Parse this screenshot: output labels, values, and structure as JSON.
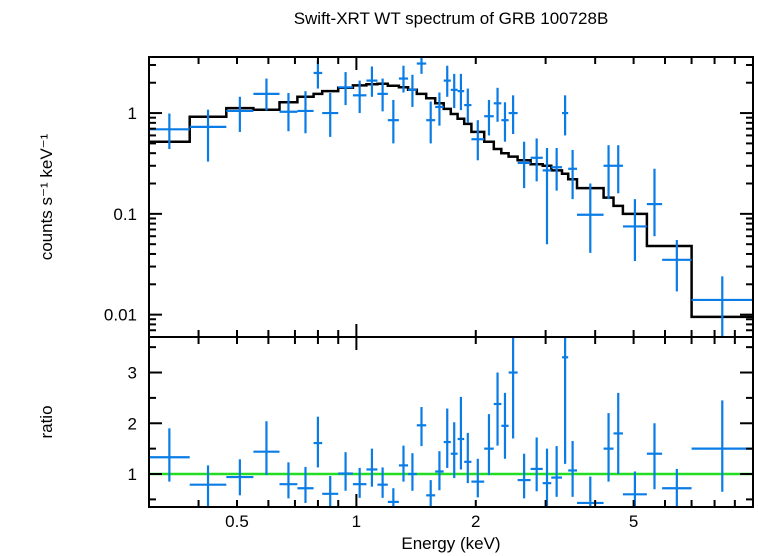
{
  "chart_data": [
    {
      "panel": "spectrum",
      "type": "scatter",
      "title": "Swift-XRT WT spectrum of GRB 100728B",
      "xlabel": "",
      "ylabel": "counts s⁻¹ keV⁻¹",
      "x_scale": "log",
      "y_scale": "log",
      "xlim": [
        0.3,
        10.0
      ],
      "ylim": [
        0.006,
        3.6
      ],
      "x_ticks": [
        0.5,
        1,
        2,
        5
      ],
      "y_ticks": [
        {
          "value": 1,
          "label": "1"
        },
        {
          "value": 0.1,
          "label": "0.1"
        },
        {
          "value": 0.01,
          "label": "0.01"
        }
      ],
      "colors": {
        "data": "#0a7ce6",
        "model": "#000000"
      },
      "series": [
        {
          "kind": "data_with_errors",
          "points": [
            {
              "x0": 0.3,
              "x1": 0.38,
              "y": 0.69,
              "ylo": 0.44,
              "yhi": 0.99
            },
            {
              "x0": 0.38,
              "x1": 0.47,
              "y": 0.73,
              "ylo": 0.33,
              "yhi": 1.08
            },
            {
              "x0": 0.47,
              "x1": 0.55,
              "y": 1.05,
              "ylo": 0.65,
              "yhi": 1.45
            },
            {
              "x0": 0.55,
              "x1": 0.64,
              "y": 1.55,
              "ylo": 1.06,
              "yhi": 2.2
            },
            {
              "x0": 0.64,
              "x1": 0.71,
              "y": 1.03,
              "ylo": 0.66,
              "yhi": 1.58
            },
            {
              "x0": 0.71,
              "x1": 0.78,
              "y": 1.05,
              "ylo": 0.63,
              "yhi": 1.65
            },
            {
              "x0": 0.78,
              "x1": 0.82,
              "y": 2.5,
              "ylo": 1.75,
              "yhi": 3.3
            },
            {
              "x0": 0.82,
              "x1": 0.9,
              "y": 1.0,
              "ylo": 0.58,
              "yhi": 1.58
            },
            {
              "x0": 0.9,
              "x1": 0.98,
              "y": 1.8,
              "ylo": 1.2,
              "yhi": 2.55
            },
            {
              "x0": 0.98,
              "x1": 1.06,
              "y": 1.5,
              "ylo": 1.0,
              "yhi": 2.1
            },
            {
              "x0": 1.06,
              "x1": 1.13,
              "y": 2.1,
              "ylo": 1.45,
              "yhi": 2.9
            },
            {
              "x0": 1.13,
              "x1": 1.2,
              "y": 1.55,
              "ylo": 1.04,
              "yhi": 2.2
            },
            {
              "x0": 1.2,
              "x1": 1.28,
              "y": 0.85,
              "ylo": 0.5,
              "yhi": 1.35
            },
            {
              "x0": 1.28,
              "x1": 1.35,
              "y": 2.2,
              "ylo": 1.6,
              "yhi": 2.95
            },
            {
              "x0": 1.35,
              "x1": 1.42,
              "y": 1.7,
              "ylo": 1.15,
              "yhi": 2.4
            },
            {
              "x0": 1.42,
              "x1": 1.5,
              "y": 3.1,
              "ylo": 2.45,
              "yhi": 3.6
            },
            {
              "x0": 1.5,
              "x1": 1.58,
              "y": 0.85,
              "ylo": 0.5,
              "yhi": 1.3
            },
            {
              "x0": 1.58,
              "x1": 1.66,
              "y": 1.15,
              "ylo": 0.75,
              "yhi": 1.6
            },
            {
              "x0": 1.66,
              "x1": 1.73,
              "y": 2.1,
              "ylo": 1.45,
              "yhi": 2.95
            },
            {
              "x0": 1.73,
              "x1": 1.8,
              "y": 1.7,
              "ylo": 1.12,
              "yhi": 2.45
            },
            {
              "x0": 1.8,
              "x1": 1.87,
              "y": 1.65,
              "ylo": 1.07,
              "yhi": 2.45
            },
            {
              "x0": 1.87,
              "x1": 1.95,
              "y": 1.2,
              "ylo": 0.8,
              "yhi": 1.75
            },
            {
              "x0": 1.95,
              "x1": 2.1,
              "y": 0.55,
              "ylo": 0.34,
              "yhi": 0.85
            },
            {
              "x0": 2.1,
              "x1": 2.22,
              "y": 0.93,
              "ylo": 0.6,
              "yhi": 1.35
            },
            {
              "x0": 2.22,
              "x1": 2.32,
              "y": 1.25,
              "ylo": 0.82,
              "yhi": 1.78
            },
            {
              "x0": 2.32,
              "x1": 2.42,
              "y": 0.85,
              "ylo": 0.52,
              "yhi": 1.28
            },
            {
              "x0": 2.42,
              "x1": 2.55,
              "y": 1.0,
              "ylo": 0.62,
              "yhi": 1.5
            },
            {
              "x0": 2.55,
              "x1": 2.75,
              "y": 0.32,
              "ylo": 0.18,
              "yhi": 0.52
            },
            {
              "x0": 2.75,
              "x1": 2.95,
              "y": 0.36,
              "ylo": 0.21,
              "yhi": 0.56
            },
            {
              "x0": 2.95,
              "x1": 3.1,
              "y": 0.27,
              "ylo": 0.05,
              "yhi": 0.45
            },
            {
              "x0": 3.1,
              "x1": 3.3,
              "y": 0.29,
              "ylo": 0.17,
              "yhi": 0.45
            },
            {
              "x0": 3.3,
              "x1": 3.42,
              "y": 1.0,
              "ylo": 0.6,
              "yhi": 1.5
            },
            {
              "x0": 3.42,
              "x1": 3.6,
              "y": 0.28,
              "ylo": 0.14,
              "yhi": 0.43
            },
            {
              "x0": 3.6,
              "x1": 4.2,
              "y": 0.098,
              "ylo": 0.041,
              "yhi": 0.2
            },
            {
              "x0": 4.2,
              "x1": 4.45,
              "y": 0.3,
              "ylo": 0.14,
              "yhi": 0.48
            },
            {
              "x0": 4.45,
              "x1": 4.7,
              "y": 0.3,
              "ylo": 0.16,
              "yhi": 0.48
            },
            {
              "x0": 4.7,
              "x1": 5.4,
              "y": 0.075,
              "ylo": 0.034,
              "yhi": 0.14
            },
            {
              "x0": 5.4,
              "x1": 5.9,
              "y": 0.125,
              "ylo": 0.06,
              "yhi": 0.28
            },
            {
              "x0": 5.9,
              "x1": 7.0,
              "y": 0.035,
              "ylo": 0.017,
              "yhi": 0.055
            },
            {
              "x0": 7.0,
              "x1": 10.0,
              "y": 0.014,
              "ylo": 0.006,
              "yhi": 0.024
            }
          ]
        },
        {
          "kind": "model_step",
          "edges": [
            0.3,
            0.38,
            0.47,
            0.55,
            0.64,
            0.71,
            0.78,
            0.82,
            0.9,
            0.98,
            1.06,
            1.13,
            1.2,
            1.28,
            1.35,
            1.42,
            1.5,
            1.58,
            1.66,
            1.73,
            1.8,
            1.87,
            1.95,
            2.1,
            2.22,
            2.32,
            2.42,
            2.55,
            2.75,
            2.95,
            3.1,
            3.3,
            3.42,
            3.6,
            4.2,
            4.45,
            4.7,
            5.4,
            5.9,
            7.0,
            10.0
          ],
          "values": [
            0.52,
            0.92,
            1.12,
            1.08,
            1.28,
            1.45,
            1.55,
            1.65,
            1.78,
            1.88,
            1.93,
            1.95,
            1.87,
            1.8,
            1.7,
            1.55,
            1.4,
            1.25,
            1.1,
            0.98,
            0.88,
            0.78,
            0.65,
            0.52,
            0.44,
            0.4,
            0.37,
            0.34,
            0.31,
            0.3,
            0.27,
            0.25,
            0.22,
            0.18,
            0.145,
            0.12,
            0.1,
            0.048,
            0.048,
            0.0095
          ]
        }
      ]
    },
    {
      "panel": "ratio",
      "type": "scatter",
      "xlabel": "Energy (keV)",
      "ylabel": "ratio",
      "x_scale": "log",
      "y_scale": "linear",
      "xlim": [
        0.3,
        10.0
      ],
      "ylim": [
        0.35,
        3.7
      ],
      "x_ticks": [
        {
          "value": 0.5,
          "label": "0.5"
        },
        {
          "value": 1,
          "label": "1"
        },
        {
          "value": 2,
          "label": "2"
        },
        {
          "value": 5,
          "label": "5"
        }
      ],
      "y_ticks": [
        {
          "value": 1,
          "label": "1"
        },
        {
          "value": 2,
          "label": "2"
        },
        {
          "value": 3,
          "label": "3"
        }
      ],
      "reference_line": {
        "y": 1,
        "color": "#22dd22"
      },
      "colors": {
        "data": "#0a7ce6"
      },
      "series": [
        {
          "kind": "ratio_with_errors",
          "points": [
            {
              "x0": 0.3,
              "x1": 0.38,
              "y": 1.33,
              "ylo": 0.85,
              "yhi": 1.9
            },
            {
              "x0": 0.38,
              "x1": 0.47,
              "y": 0.79,
              "ylo": 0.36,
              "yhi": 1.17
            },
            {
              "x0": 0.47,
              "x1": 0.55,
              "y": 0.94,
              "ylo": 0.58,
              "yhi": 1.29
            },
            {
              "x0": 0.55,
              "x1": 0.64,
              "y": 1.44,
              "ylo": 0.98,
              "yhi": 2.04
            },
            {
              "x0": 0.64,
              "x1": 0.71,
              "y": 0.8,
              "ylo": 0.52,
              "yhi": 1.23
            },
            {
              "x0": 0.71,
              "x1": 0.78,
              "y": 0.72,
              "ylo": 0.43,
              "yhi": 1.14
            },
            {
              "x0": 0.78,
              "x1": 0.82,
              "y": 1.61,
              "ylo": 1.13,
              "yhi": 2.13
            },
            {
              "x0": 0.82,
              "x1": 0.9,
              "y": 0.61,
              "ylo": 0.35,
              "yhi": 0.96
            },
            {
              "x0": 0.9,
              "x1": 0.98,
              "y": 1.01,
              "ylo": 0.67,
              "yhi": 1.43
            },
            {
              "x0": 0.98,
              "x1": 1.06,
              "y": 0.8,
              "ylo": 0.53,
              "yhi": 1.12
            },
            {
              "x0": 1.06,
              "x1": 1.13,
              "y": 1.09,
              "ylo": 0.75,
              "yhi": 1.5
            },
            {
              "x0": 1.13,
              "x1": 1.2,
              "y": 0.79,
              "ylo": 0.53,
              "yhi": 1.13
            },
            {
              "x0": 1.2,
              "x1": 1.28,
              "y": 0.45,
              "ylo": 0.35,
              "yhi": 0.72
            },
            {
              "x0": 1.28,
              "x1": 1.35,
              "y": 1.17,
              "ylo": 0.85,
              "yhi": 1.56
            },
            {
              "x0": 1.35,
              "x1": 1.42,
              "y": 1.0,
              "ylo": 0.67,
              "yhi": 1.41
            },
            {
              "x0": 1.42,
              "x1": 1.5,
              "y": 1.96,
              "ylo": 1.55,
              "yhi": 2.32
            },
            {
              "x0": 1.5,
              "x1": 1.58,
              "y": 0.58,
              "ylo": 0.35,
              "yhi": 0.88
            },
            {
              "x0": 1.58,
              "x1": 1.66,
              "y": 1.05,
              "ylo": 0.68,
              "yhi": 1.45
            },
            {
              "x0": 1.66,
              "x1": 1.73,
              "y": 1.63,
              "ylo": 1.12,
              "yhi": 2.29
            },
            {
              "x0": 1.73,
              "x1": 1.8,
              "y": 1.4,
              "ylo": 0.92,
              "yhi": 2.02
            },
            {
              "x0": 1.8,
              "x1": 1.87,
              "y": 1.69,
              "ylo": 1.09,
              "yhi": 2.52
            },
            {
              "x0": 1.87,
              "x1": 1.95,
              "y": 1.24,
              "ylo": 0.82,
              "yhi": 1.81
            },
            {
              "x0": 1.95,
              "x1": 2.1,
              "y": 0.85,
              "ylo": 0.54,
              "yhi": 1.3
            },
            {
              "x0": 2.1,
              "x1": 2.22,
              "y": 1.5,
              "ylo": 0.98,
              "yhi": 2.18
            },
            {
              "x0": 2.22,
              "x1": 2.32,
              "y": 2.38,
              "ylo": 1.56,
              "yhi": 3.0
            },
            {
              "x0": 2.32,
              "x1": 2.42,
              "y": 1.95,
              "ylo": 1.3,
              "yhi": 2.6
            },
            {
              "x0": 2.42,
              "x1": 2.55,
              "y": 3.0,
              "ylo": 1.7,
              "yhi": 3.7
            },
            {
              "x0": 2.55,
              "x1": 2.75,
              "y": 0.88,
              "ylo": 0.52,
              "yhi": 1.4
            },
            {
              "x0": 2.75,
              "x1": 2.95,
              "y": 1.1,
              "ylo": 0.66,
              "yhi": 1.72
            },
            {
              "x0": 2.95,
              "x1": 3.1,
              "y": 0.82,
              "ylo": 0.35,
              "yhi": 1.5
            },
            {
              "x0": 3.1,
              "x1": 3.3,
              "y": 0.93,
              "ylo": 0.55,
              "yhi": 1.55
            },
            {
              "x0": 3.3,
              "x1": 3.42,
              "y": 3.3,
              "ylo": 1.2,
              "yhi": 3.7
            },
            {
              "x0": 3.42,
              "x1": 3.6,
              "y": 1.07,
              "ylo": 0.55,
              "yhi": 1.65
            },
            {
              "x0": 3.6,
              "x1": 4.2,
              "y": 0.43,
              "ylo": 0.35,
              "yhi": 0.95
            },
            {
              "x0": 4.2,
              "x1": 4.45,
              "y": 1.5,
              "ylo": 0.85,
              "yhi": 2.2
            },
            {
              "x0": 4.45,
              "x1": 4.7,
              "y": 1.8,
              "ylo": 1.0,
              "yhi": 2.6
            },
            {
              "x0": 4.7,
              "x1": 5.4,
              "y": 0.6,
              "ylo": 0.35,
              "yhi": 1.05
            },
            {
              "x0": 5.4,
              "x1": 5.9,
              "y": 1.4,
              "ylo": 0.7,
              "yhi": 2.0
            },
            {
              "x0": 5.9,
              "x1": 7.0,
              "y": 0.72,
              "ylo": 0.37,
              "yhi": 1.1
            },
            {
              "x0": 7.0,
              "x1": 10.0,
              "y": 1.5,
              "ylo": 0.65,
              "yhi": 2.45
            }
          ]
        }
      ]
    }
  ]
}
